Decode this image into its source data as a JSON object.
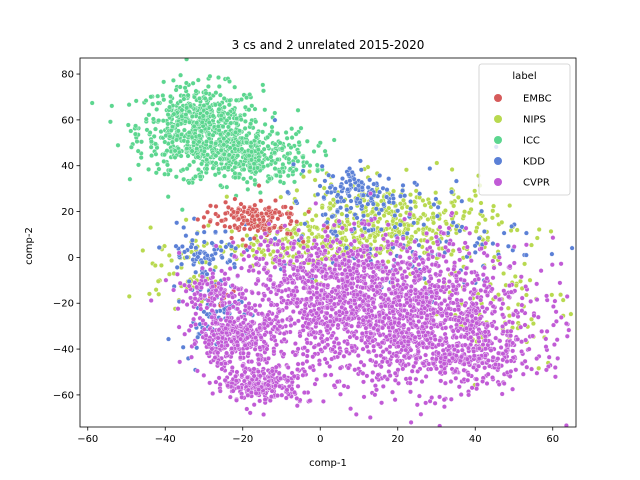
{
  "chart_data": {
    "type": "scatter",
    "title": "3 cs and 2 unrelated 2015-2020",
    "xlabel": "comp-1",
    "ylabel": "comp-2",
    "xlim": [
      -62,
      66
    ],
    "ylim": [
      -74,
      87
    ],
    "xticks": [
      -60,
      -40,
      -20,
      0,
      20,
      40,
      60
    ],
    "yticks": [
      -60,
      -40,
      -20,
      0,
      20,
      40,
      60,
      80
    ],
    "grid": false,
    "legend": {
      "title": "label",
      "placement": "top-right"
    },
    "series": [
      {
        "name": "EMBC",
        "color": "#d65b5b",
        "clusters": [
          {
            "center": [
              -18,
              17
            ],
            "spread": [
              6,
              4
            ],
            "count": 160
          },
          {
            "center": [
              -26,
              -18
            ],
            "spread": [
              3,
              3
            ],
            "count": 12
          }
        ]
      },
      {
        "name": "NIPS",
        "color": "#b8d94f",
        "clusters": [
          {
            "center": [
              18,
              15
            ],
            "spread": [
              14,
              9
            ],
            "count": 420
          },
          {
            "center": [
              -5,
              5
            ],
            "spread": [
              15,
              5
            ],
            "count": 200
          },
          {
            "center": [
              -36,
              -8
            ],
            "spread": [
              4,
              6
            ],
            "count": 40
          },
          {
            "center": [
              45,
              -20
            ],
            "spread": [
              10,
              15
            ],
            "count": 80
          }
        ]
      },
      {
        "name": "ICC",
        "color": "#5cd68f",
        "clusters": [
          {
            "center": [
              -31,
              57
            ],
            "spread": [
              8,
              9
            ],
            "count": 600
          },
          {
            "center": [
              -20,
              44
            ],
            "spread": [
              9,
              6
            ],
            "count": 400
          }
        ]
      },
      {
        "name": "KDD",
        "color": "#5b80d6",
        "clusters": [
          {
            "center": [
              10,
              28
            ],
            "spread": [
              5,
              6
            ],
            "count": 110
          },
          {
            "center": [
              -30,
              2
            ],
            "spread": [
              5,
              6
            ],
            "count": 80
          },
          {
            "center": [
              -28,
              -25
            ],
            "spread": [
              4,
              8
            ],
            "count": 70
          },
          {
            "center": [
              20,
              10
            ],
            "spread": [
              16,
              14
            ],
            "count": 150
          }
        ]
      },
      {
        "name": "CVPR",
        "color": "#c15bd6",
        "clusters": [
          {
            "center": [
              20,
              -25
            ],
            "spread": [
              17,
              16
            ],
            "count": 1700
          },
          {
            "center": [
              -22,
              -35
            ],
            "spread": [
              6,
              6
            ],
            "count": 350
          },
          {
            "center": [
              -15,
              -55
            ],
            "spread": [
              5,
              4
            ],
            "count": 260
          },
          {
            "center": [
              40,
              -45
            ],
            "spread": [
              8,
              5
            ],
            "count": 200
          },
          {
            "center": [
              0,
              -10
            ],
            "spread": [
              12,
              10
            ],
            "count": 400
          },
          {
            "center": [
              -28,
              -15
            ],
            "spread": [
              5,
              4
            ],
            "count": 90
          }
        ]
      }
    ]
  }
}
